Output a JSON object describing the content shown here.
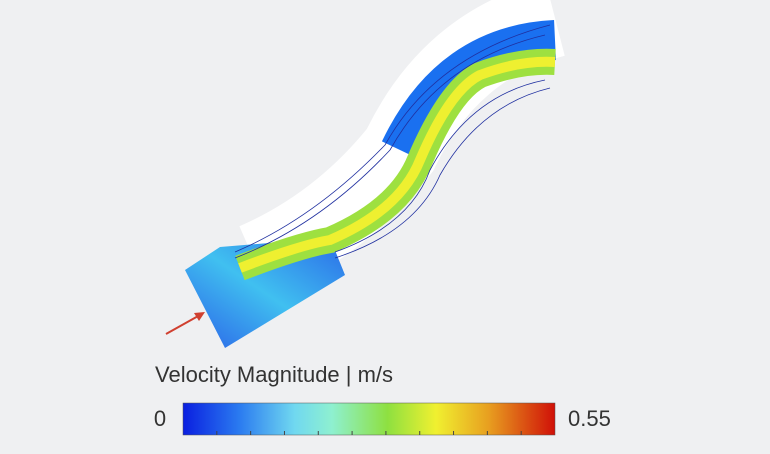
{
  "legend": {
    "title": "Velocity Magnitude | m/s",
    "min": 0,
    "max": 0.55
  }
}
